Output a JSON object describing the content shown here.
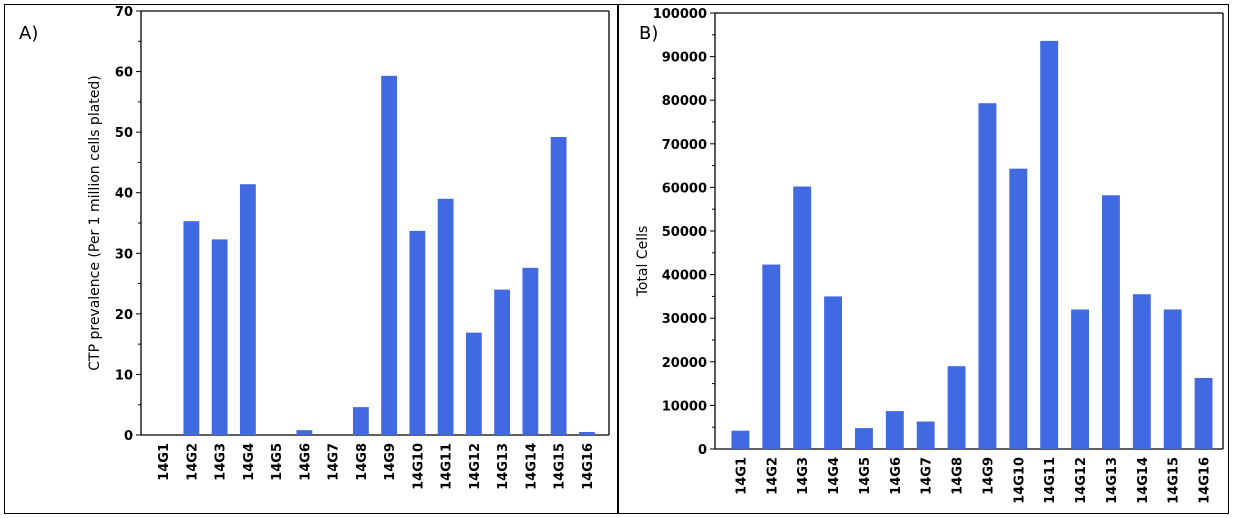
{
  "chart_data": [
    {
      "type": "bar",
      "panel_label": "A)",
      "ylabel": "CTP prevalence (Per 1 million cells plated)",
      "xlabel": "",
      "ylim": [
        0,
        70
      ],
      "yticks": [
        0,
        10,
        20,
        30,
        40,
        50,
        60,
        70
      ],
      "categories": [
        "14G1",
        "14G2",
        "14G3",
        "14G4",
        "14G5",
        "14G6",
        "14G7",
        "14G8",
        "14G9",
        "14G10",
        "14G11",
        "14G12",
        "14G13",
        "14G14",
        "14G15",
        "14G16"
      ],
      "values": [
        0,
        35.3,
        32.3,
        41.4,
        0,
        0.8,
        0,
        4.6,
        59.3,
        33.7,
        39.0,
        16.9,
        24.0,
        27.6,
        49.2,
        0.5
      ],
      "bar_color": "#4169E1"
    },
    {
      "type": "bar",
      "panel_label": "B)",
      "ylabel": "Total Cells",
      "xlabel": "",
      "ylim": [
        0,
        100000
      ],
      "yticks": [
        0,
        10000,
        20000,
        30000,
        40000,
        50000,
        60000,
        70000,
        80000,
        90000,
        100000
      ],
      "categories": [
        "14G1",
        "14G2",
        "14G3",
        "14G4",
        "14G5",
        "14G6",
        "14G7",
        "14G8",
        "14G9",
        "14G10",
        "14G11",
        "14G12",
        "14G13",
        "14G14",
        "14G15",
        "14G16"
      ],
      "values": [
        4200,
        42300,
        60200,
        35000,
        4800,
        8700,
        6300,
        19000,
        79300,
        64300,
        93600,
        32000,
        58200,
        35500,
        32000,
        16300
      ],
      "bar_color": "#4169E1"
    }
  ]
}
